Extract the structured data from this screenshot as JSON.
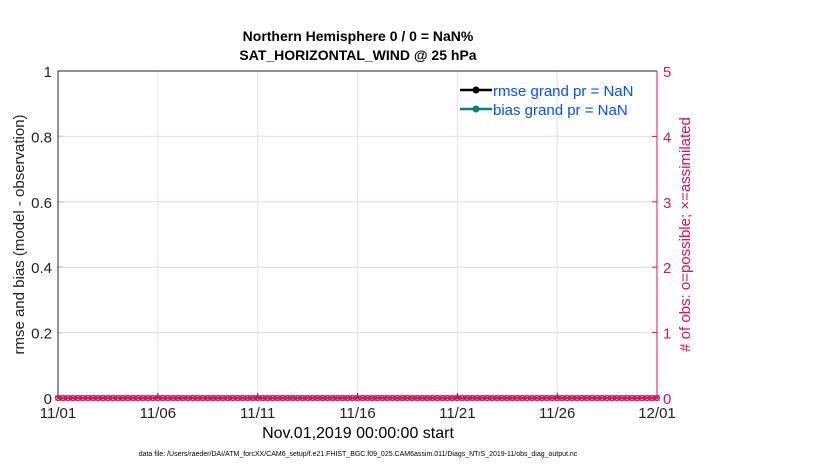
{
  "chart_data": {
    "type": "line",
    "title": [
      "Northern Hemisphere 0 / 0 = NaN%",
      "SAT_HORIZONTAL_WIND @ 25 hPa"
    ],
    "xlabel": "Nov.01,2019 00:00:00 start",
    "ylabel_left": "rmse and bias (model - observation)",
    "ylabel_right": "# of obs: o=possible; ×=assimilated",
    "x_ticks": [
      "11/01",
      "11/06",
      "11/11",
      "11/16",
      "11/21",
      "11/26",
      "12/01"
    ],
    "x_range": [
      "11/01",
      "12/01"
    ],
    "y_left_ticks": [
      "0",
      "0.2",
      "0.4",
      "0.6",
      "0.8",
      "1"
    ],
    "y_left_range": [
      0,
      1
    ],
    "y_right_ticks": [
      "0",
      "1",
      "2",
      "3",
      "4",
      "5"
    ],
    "y_right_range": [
      0,
      5
    ],
    "grid": true,
    "legend_placement": "top-right",
    "series": [
      {
        "name": "rmse grand pr = NaN",
        "color": "#000000",
        "values": []
      },
      {
        "name": "bias grand pr = NaN",
        "color": "#008080",
        "values": []
      },
      {
        "axis": "right",
        "marker": "o",
        "color": "#e0105a",
        "description_from_axis": "possible",
        "values_all": 0
      },
      {
        "axis": "right",
        "marker": "x",
        "color": "#e0105a",
        "description_from_axis": "assimilated",
        "values_all": 0
      }
    ],
    "colors": {
      "right_axis": "#e0105a",
      "legend_text": "#0050ff"
    }
  },
  "footer": {
    "datafile": "data file: /Users/raeder/DAI/ATM_forcXX/CAM6_setup/f.e21.FHIST_BGC.f09_025.CAM6assim.011/Diags_NTrS_2019-11/obs_diag_output.nc"
  }
}
